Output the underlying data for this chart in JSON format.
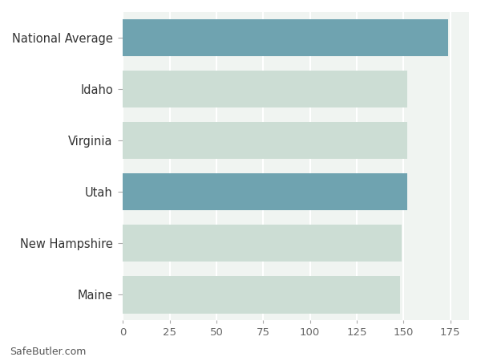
{
  "categories": [
    "Maine",
    "New Hampshire",
    "Utah",
    "Virginia",
    "Idaho",
    "National Average"
  ],
  "values": [
    148,
    149,
    152,
    152,
    152,
    174
  ],
  "bar_colors": [
    "#ccddd4",
    "#ccddd4",
    "#6fa3b0",
    "#ccddd4",
    "#ccddd4",
    "#6fa3b0"
  ],
  "xlim": [
    0,
    185
  ],
  "xticks": [
    0,
    25,
    50,
    75,
    100,
    125,
    150,
    175
  ],
  "background_color": "#ffffff",
  "plot_bg_color": "#f0f4f1",
  "watermark": "SafeButler.com",
  "tick_color": "#666666",
  "label_fontsize": 10.5,
  "tick_fontsize": 9.5,
  "watermark_fontsize": 9,
  "bar_height": 0.72
}
